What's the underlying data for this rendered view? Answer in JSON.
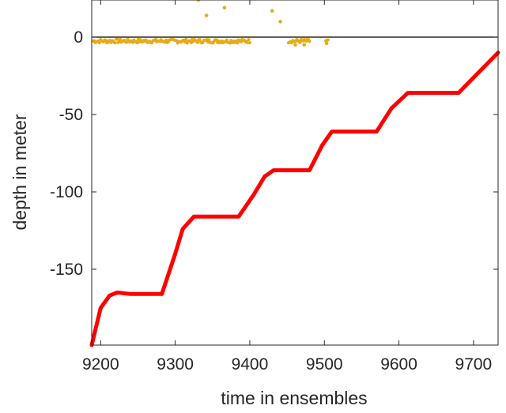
{
  "chart_data": {
    "type": "scatter",
    "title": "",
    "xlabel": "time in ensembles",
    "ylabel": "depth in meter",
    "xlim": [
      9188,
      9733
    ],
    "ylim": [
      -199,
      24
    ],
    "xticks": [
      9200,
      9300,
      9400,
      9500,
      9600,
      9700
    ],
    "yticks": [
      0,
      -50,
      -100,
      -150
    ],
    "xtick_labels": [
      "9200",
      "9300",
      "9400",
      "9500",
      "9600",
      "9700"
    ],
    "ytick_labels": [
      "0",
      "-50",
      "-100",
      "-150"
    ],
    "grid": false,
    "box": true,
    "reference_line": {
      "y": 0,
      "color": "#000000"
    },
    "series": [
      {
        "style": "line",
        "color": "#ff0000",
        "points": [
          [
            9188,
            -199
          ],
          [
            9195,
            -185
          ],
          [
            9200,
            -175
          ],
          [
            9212,
            -167
          ],
          [
            9222,
            -165
          ],
          [
            9240,
            -166
          ],
          [
            9282,
            -166
          ],
          [
            9300,
            -140
          ],
          [
            9310,
            -124
          ],
          [
            9325,
            -116
          ],
          [
            9340,
            -116
          ],
          [
            9385,
            -116
          ],
          [
            9405,
            -102
          ],
          [
            9420,
            -90
          ],
          [
            9432,
            -86
          ],
          [
            9450,
            -86
          ],
          [
            9480,
            -86
          ],
          [
            9497,
            -70
          ],
          [
            9510,
            -61
          ],
          [
            9530,
            -61
          ],
          [
            9570,
            -61
          ],
          [
            9590,
            -46
          ],
          [
            9612,
            -36
          ],
          [
            9630,
            -36
          ],
          [
            9680,
            -36
          ],
          [
            9733,
            -10
          ]
        ]
      },
      {
        "style": "scatter",
        "color": "#e6ab17",
        "segments": [
          [
            9190,
            9400
          ],
          [
            9452,
            9480
          ],
          [
            9502,
            9506
          ]
        ],
        "outliers": [
          [
            9331,
            24
          ],
          [
            9342,
            14
          ],
          [
            9366,
            19
          ],
          [
            9430,
            17
          ],
          [
            9441,
            10
          ],
          [
            9461,
            -5
          ],
          [
            9473,
            -5
          ],
          [
            9503,
            -4
          ]
        ]
      }
    ]
  }
}
